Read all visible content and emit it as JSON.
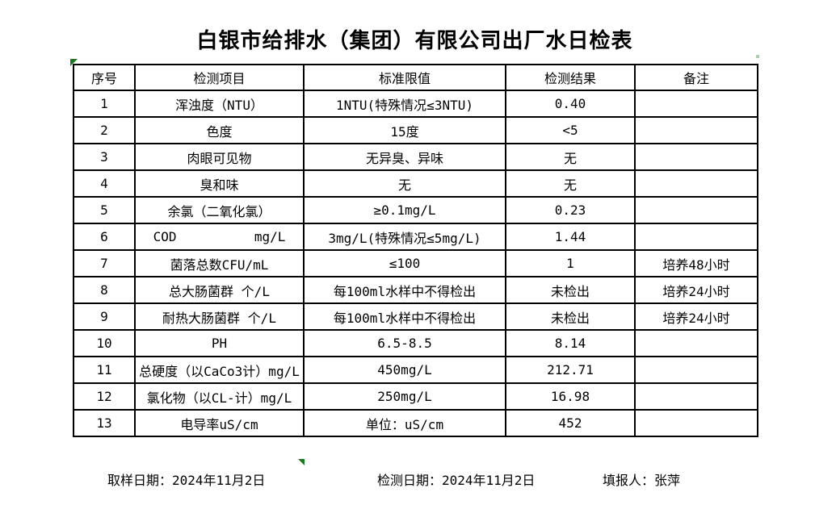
{
  "title": "白银市给排水（集团）有限公司出厂水日检表",
  "colors": {
    "background": "#ffffff",
    "border": "#000000",
    "text": "#000000",
    "marker_green": "#1a7a1f"
  },
  "icons": {
    "top_left_marker": "green-corner-triangle",
    "bottom_marker": "green-corner-triangle",
    "top_right_marker": "green-dot"
  },
  "table": {
    "headers": {
      "no": "序号",
      "item": "检测项目",
      "limit": "标准限值",
      "result": "检测结果",
      "note": "备注"
    },
    "rows": [
      {
        "no": "1",
        "item": "浑浊度（NTU）",
        "limit": "1NTU(特殊情况≤3NTU)",
        "result": "0.40",
        "note": ""
      },
      {
        "no": "2",
        "item": "色度",
        "limit": "15度",
        "result": "<5",
        "note": ""
      },
      {
        "no": "3",
        "item": "肉眼可见物",
        "limit": "无异臭、异味",
        "result": "无",
        "note": ""
      },
      {
        "no": "4",
        "item": "臭和味",
        "limit": "无",
        "result": "无",
        "note": ""
      },
      {
        "no": "5",
        "item": "余氯（二氧化氯）",
        "limit": "≥0.1mg/L",
        "result": "0.23",
        "note": ""
      },
      {
        "no": "6",
        "item": "COD          mg/L",
        "limit": "3mg/L(特殊情况≤5mg/L)",
        "result": "1.44",
        "note": ""
      },
      {
        "no": "7",
        "item": "菌落总数CFU/mL",
        "limit": "≤100",
        "result": "1",
        "note": "培养48小时"
      },
      {
        "no": "8",
        "item": "总大肠菌群 个/L",
        "limit": "每100ml水样中不得检出",
        "result": "未检出",
        "note": "培养24小时"
      },
      {
        "no": "9",
        "item": "耐热大肠菌群 个/L",
        "limit": "每100ml水样中不得检出",
        "result": "未检出",
        "note": "培养24小时"
      },
      {
        "no": "10",
        "item": "PH",
        "limit": "6.5-8.5",
        "result": "8.14",
        "note": ""
      },
      {
        "no": "11",
        "item": "总硬度（以CaCo3计）mg/L",
        "limit": "450mg/L",
        "result": "212.71",
        "note": ""
      },
      {
        "no": "12",
        "item": "氯化物（以CL-计）mg/L",
        "limit": "250mg/L",
        "result": "16.98",
        "note": ""
      },
      {
        "no": "13",
        "item": "电导率uS/cm",
        "limit": "单位：uS/cm",
        "result": "452",
        "note": ""
      }
    ]
  },
  "footer": {
    "sampling_date": "取样日期：2024年11月2日",
    "test_date": "检测日期：2024年11月2日",
    "reporter": "填报人：张萍"
  }
}
